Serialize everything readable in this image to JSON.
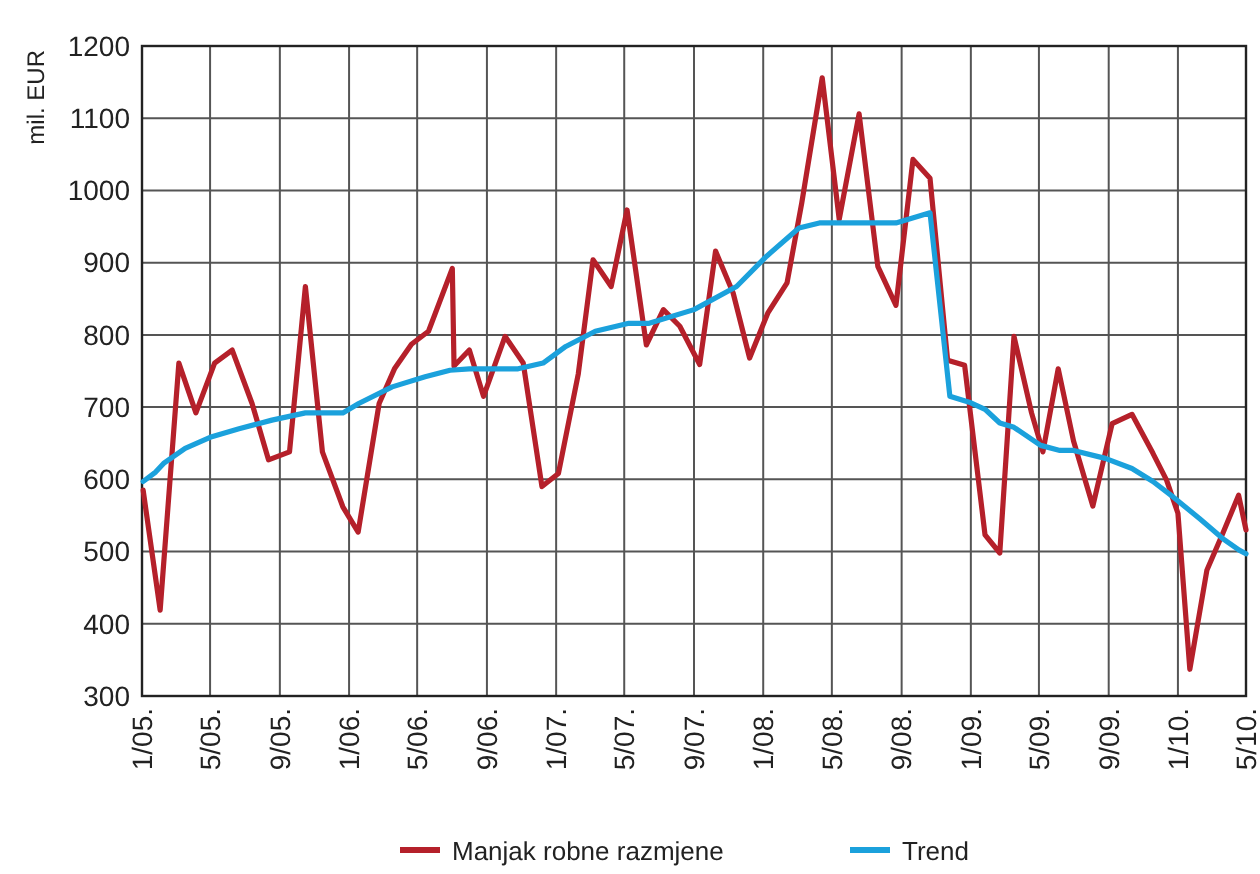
{
  "chart_data": {
    "type": "line",
    "ylabel": "mil. EUR",
    "xlim": [
      "2005-01",
      "2010-05"
    ],
    "xticks": [
      {
        "value": "2005-01",
        "label": "1/05."
      },
      {
        "value": "2005-05",
        "label": "5/05."
      },
      {
        "value": "2005-09",
        "label": "9/05."
      },
      {
        "value": "2006-01",
        "label": "1/06."
      },
      {
        "value": "2006-05",
        "label": "5/06."
      },
      {
        "value": "2006-09",
        "label": "9/06."
      },
      {
        "value": "2007-01",
        "label": "1/07."
      },
      {
        "value": "2007-05",
        "label": "5/07."
      },
      {
        "value": "2007-09",
        "label": "9/07."
      },
      {
        "value": "2008-01",
        "label": "1/08."
      },
      {
        "value": "2008-05",
        "label": "5/08."
      },
      {
        "value": "2008-09",
        "label": "9/08."
      },
      {
        "value": "2009-01",
        "label": "1/09."
      },
      {
        "value": "2009-05",
        "label": "5/09."
      },
      {
        "value": "2009-09",
        "label": "9/09."
      },
      {
        "value": "2010-01",
        "label": "1/10."
      },
      {
        "value": "2010-05",
        "label": "5/10."
      }
    ],
    "ylim": [
      300,
      1200
    ],
    "yticks": [
      300,
      400,
      500,
      600,
      700,
      800,
      900,
      1000,
      1100,
      1200
    ],
    "grid": true,
    "legend": "bottom",
    "marker": "none",
    "line_style": "solid",
    "series": [
      {
        "name": "Manjak robne razmjene",
        "color": "#b5202a",
        "x": [
          "2005-01-03",
          "2005-02-02",
          "2005-03-07",
          "2005-04-06",
          "2005-05-09",
          "2005-06-09",
          "2005-07-14",
          "2005-08-12",
          "2005-09-18",
          "2005-10-16",
          "2005-11-15",
          "2005-12-21",
          "2006-01-17",
          "2006-02-23",
          "2006-03-22",
          "2006-04-21",
          "2006-05-21",
          "2006-07-02",
          "2006-07-05",
          "2006-08-01",
          "2006-08-26",
          "2006-10-03",
          "2006-11-04",
          "2006-12-07",
          "2007-01-05",
          "2007-02-09",
          "2007-03-07",
          "2007-04-08",
          "2007-05-06",
          "2007-06-09",
          "2007-07-09",
          "2007-08-07",
          "2007-09-11",
          "2007-10-09",
          "2007-11-09",
          "2007-12-08",
          "2008-01-09",
          "2008-02-12",
          "2008-03-09",
          "2008-04-14",
          "2008-05-14",
          "2008-06-18",
          "2008-07-21",
          "2008-08-22",
          "2008-09-21",
          "2008-10-21",
          "2008-11-21",
          "2008-12-21",
          "2009-01-26",
          "2009-02-21",
          "2009-03-18",
          "2009-04-18",
          "2009-05-08",
          "2009-06-04",
          "2009-07-01",
          "2009-08-04",
          "2009-09-07",
          "2009-10-12",
          "2009-11-18",
          "2009-12-12",
          "2010-01-01",
          "2010-01-22",
          "2010-02-21",
          "2010-03-21",
          "2010-04-18",
          "2010-05-01"
        ],
        "values": [
          585,
          419,
          761,
          692,
          761,
          779,
          705,
          627,
          638,
          867,
          638,
          562,
          527,
          705,
          753,
          787,
          805,
          892,
          757,
          779,
          715,
          798,
          761,
          590,
          608,
          746,
          904,
          867,
          973,
          786,
          835,
          812,
          759,
          916,
          858,
          768,
          830,
          872,
          983,
          1156,
          960,
          1106,
          895,
          841,
          1043,
          1017,
          765,
          758,
          523,
          498,
          798,
          692,
          638,
          753,
          653,
          563,
          677,
          690,
          636,
          599,
          553,
          337,
          474,
          525,
          578,
          530
        ]
      },
      {
        "name": "Trend",
        "color": "#1ba1dc",
        "x": [
          "2005-01-03",
          "2005-01-25",
          "2005-02-08",
          "2005-03-18",
          "2005-05-04",
          "2005-06-21",
          "2005-08-18",
          "2005-10-16",
          "2005-12-21",
          "2006-01-18",
          "2006-03-18",
          "2006-05-15",
          "2006-06-28",
          "2006-08-01",
          "2006-10-26",
          "2006-12-09",
          "2007-01-18",
          "2007-03-11",
          "2007-05-09",
          "2007-06-14",
          "2007-09-01",
          "2007-11-15",
          "2008-01-07",
          "2008-03-04",
          "2008-04-09",
          "2008-07-23",
          "2008-08-22",
          "2008-10-21",
          "2008-11-25",
          "2009-01-01",
          "2009-01-26",
          "2009-02-21",
          "2009-03-18",
          "2009-05-04",
          "2009-06-07",
          "2009-07-01",
          "2009-08-26",
          "2009-10-12",
          "2009-11-18",
          "2009-12-23",
          "2010-02-09",
          "2010-03-21",
          "2010-04-19",
          "2010-05-01"
        ],
        "values": [
          597,
          610,
          622,
          643,
          659,
          670,
          682,
          692,
          692,
          705,
          728,
          742,
          751,
          753,
          753,
          761,
          784,
          805,
          816,
          816,
          835,
          867,
          909,
          948,
          955,
          955,
          955,
          969,
          715,
          706,
          697,
          678,
          672,
          647,
          640,
          640,
          629,
          615,
          597,
          576,
          545,
          518,
          502,
          497
        ]
      }
    ]
  }
}
